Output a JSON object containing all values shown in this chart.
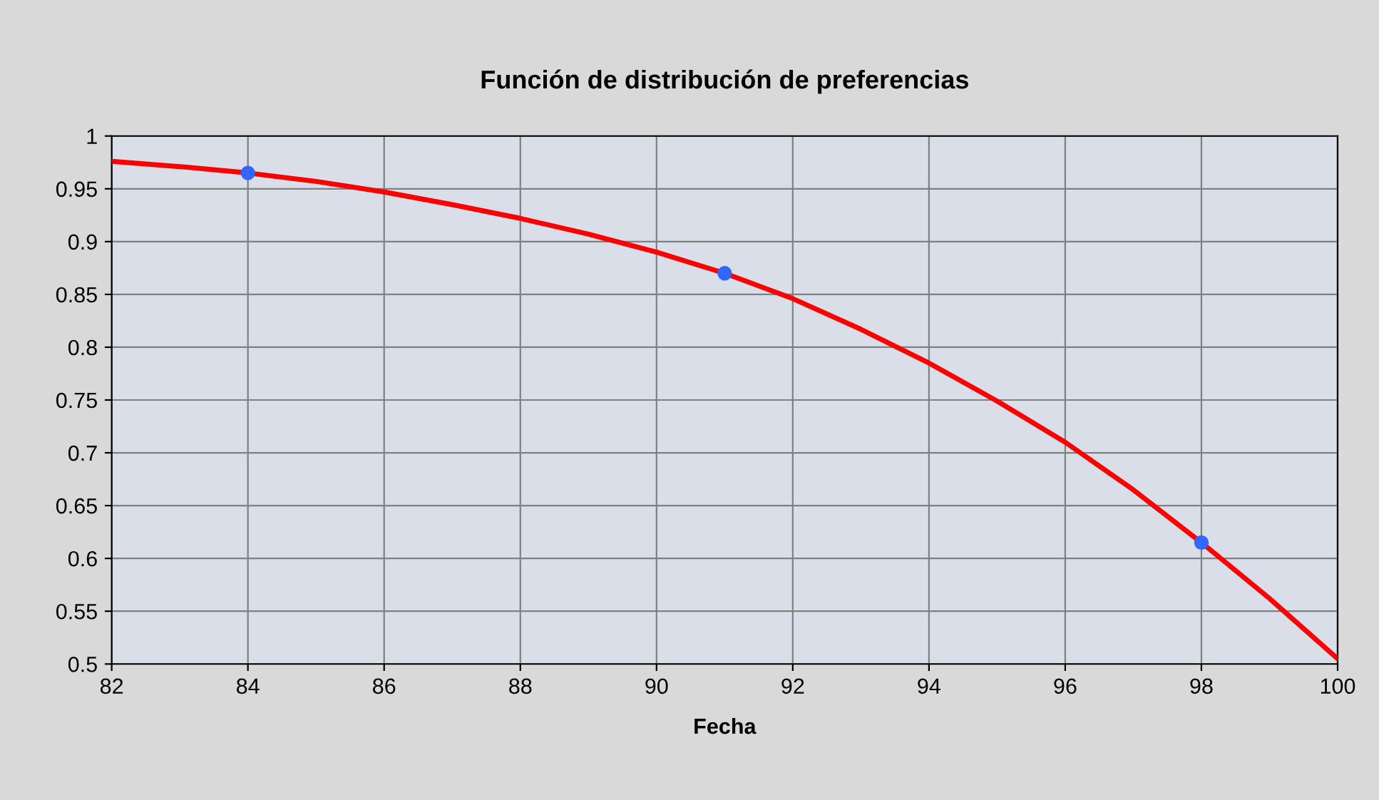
{
  "chart_data": {
    "type": "line",
    "title": "Función de distribución de preferencias",
    "xlabel": "Fecha",
    "xlim": [
      82,
      100
    ],
    "xticks": [
      82,
      84,
      86,
      88,
      90,
      92,
      94,
      96,
      98,
      100
    ],
    "ylim": [
      0.5,
      1
    ],
    "yticks": [
      0.5,
      0.55,
      0.6,
      0.65,
      0.7,
      0.75,
      0.8,
      0.85,
      0.9,
      0.95,
      1
    ],
    "grid": true,
    "legend": false,
    "series": [
      {
        "color": "#ff0000",
        "marker": "none",
        "x": [
          82,
          83,
          84,
          85,
          86,
          87,
          88,
          89,
          90,
          91,
          92,
          93,
          94,
          95,
          96,
          97,
          98,
          99,
          100
        ],
        "values": [
          0.976,
          0.971,
          0.965,
          0.957,
          0.947,
          0.935,
          0.922,
          0.907,
          0.89,
          0.87,
          0.846,
          0.817,
          0.785,
          0.749,
          0.71,
          0.665,
          0.615,
          0.562,
          0.505
        ]
      },
      {
        "type": "scatter",
        "color": "#3366ff",
        "marker": "circle",
        "x": [
          84,
          91,
          98
        ],
        "values": [
          0.965,
          0.87,
          0.615
        ]
      }
    ]
  }
}
